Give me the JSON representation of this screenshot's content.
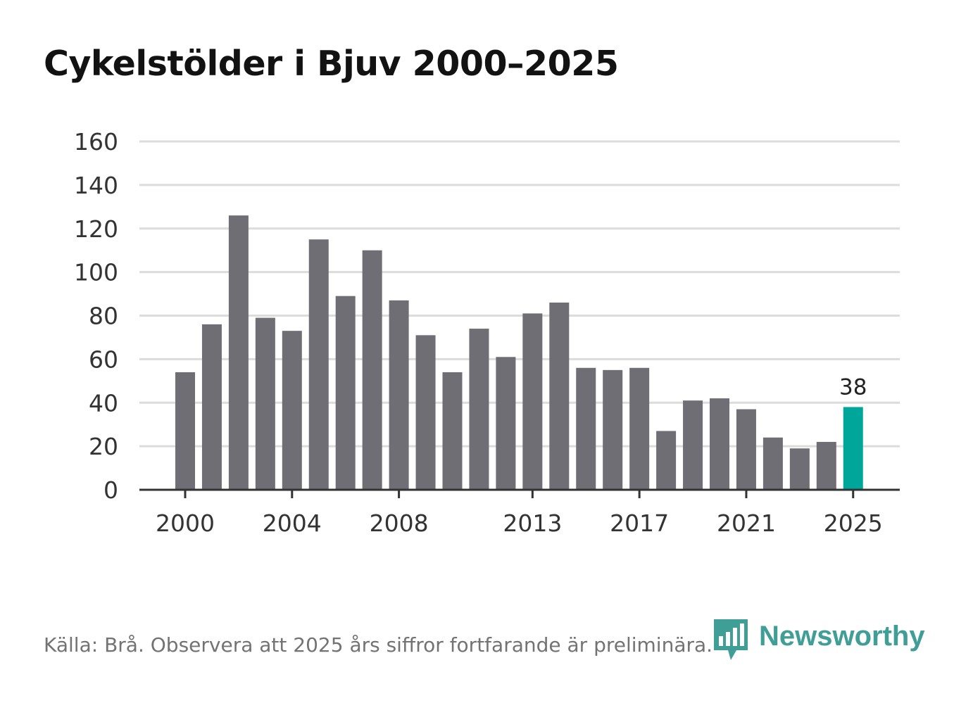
{
  "title": "Cykelstölder i Bjuv 2000–2025",
  "source": "Källa: Brå. Observera att 2025 års siffror fortfarande är preliminära.",
  "brand": {
    "name": "Newsworthy",
    "icon": "bar-chart-logo-icon"
  },
  "colors": {
    "bar": "#6f6e74",
    "highlight": "#00a69a",
    "grid": "#dcdcdc",
    "axis": "#333333",
    "text": "#333333"
  },
  "chart_data": {
    "type": "bar",
    "title": "Cykelstölder i Bjuv 2000–2025",
    "xlabel": "",
    "ylabel": "",
    "ylim": [
      0,
      160
    ],
    "yticks": [
      0,
      20,
      40,
      60,
      80,
      100,
      120,
      140,
      160
    ],
    "xtick_labels": [
      "2000",
      "2004",
      "2008",
      "2013",
      "2017",
      "2021",
      "2025"
    ],
    "grid": true,
    "categories": [
      "2000",
      "2001",
      "2002",
      "2003",
      "2004",
      "2005",
      "2006",
      "2007",
      "2008",
      "2009",
      "2010",
      "2011",
      "2012",
      "2013",
      "2014",
      "2015",
      "2016",
      "2017",
      "2018",
      "2019",
      "2020",
      "2021",
      "2022",
      "2023",
      "2024",
      "2025"
    ],
    "values": [
      54,
      76,
      126,
      79,
      73,
      115,
      89,
      110,
      87,
      71,
      54,
      74,
      61,
      81,
      86,
      56,
      55,
      56,
      27,
      41,
      42,
      37,
      24,
      19,
      22,
      38
    ],
    "highlight": {
      "category": "2025",
      "label": "38"
    }
  }
}
